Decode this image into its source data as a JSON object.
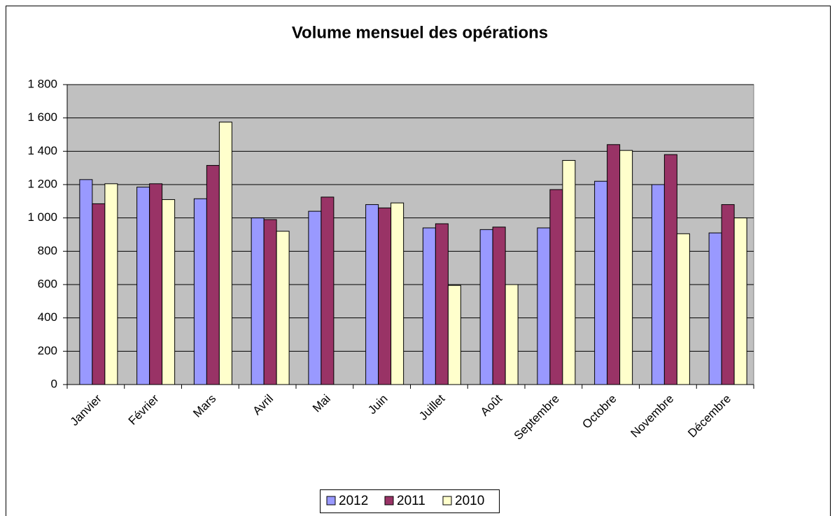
{
  "chart_data": {
    "type": "bar",
    "title": "Volume mensuel des opérations",
    "categories": [
      "Janvier",
      "Février",
      "Mars",
      "Avril",
      "Mai",
      "Juin",
      "Juillet",
      "Août",
      "Septembre",
      "Octobre",
      "Novembre",
      "Décembre"
    ],
    "series": [
      {
        "name": "2012",
        "color": "#9999ff",
        "values": [
          1230,
          1185,
          1115,
          1000,
          1040,
          1080,
          940,
          930,
          940,
          1220,
          1200,
          910
        ]
      },
      {
        "name": "2011",
        "color": "#993366",
        "values": [
          1085,
          1205,
          1315,
          990,
          1125,
          1060,
          965,
          945,
          1170,
          1440,
          1380,
          1080
        ]
      },
      {
        "name": "2010",
        "color": "#ffffcc",
        "values": [
          1205,
          1110,
          1575,
          920,
          null,
          1090,
          595,
          600,
          1345,
          1405,
          905,
          1000
        ]
      }
    ],
    "ylim": [
      0,
      1800
    ],
    "yticks": [
      0,
      200,
      400,
      600,
      800,
      {
        "value": 1000,
        "label": "1 000"
      },
      {
        "value": 1200,
        "label": "1 200"
      },
      {
        "value": 1400,
        "label": "1 400"
      },
      {
        "value": 1600,
        "label": "1 600"
      },
      {
        "value": 1800,
        "label": "1 800"
      }
    ],
    "grid": true,
    "legend": "bottom",
    "plot_background": "#c0c0c0"
  }
}
